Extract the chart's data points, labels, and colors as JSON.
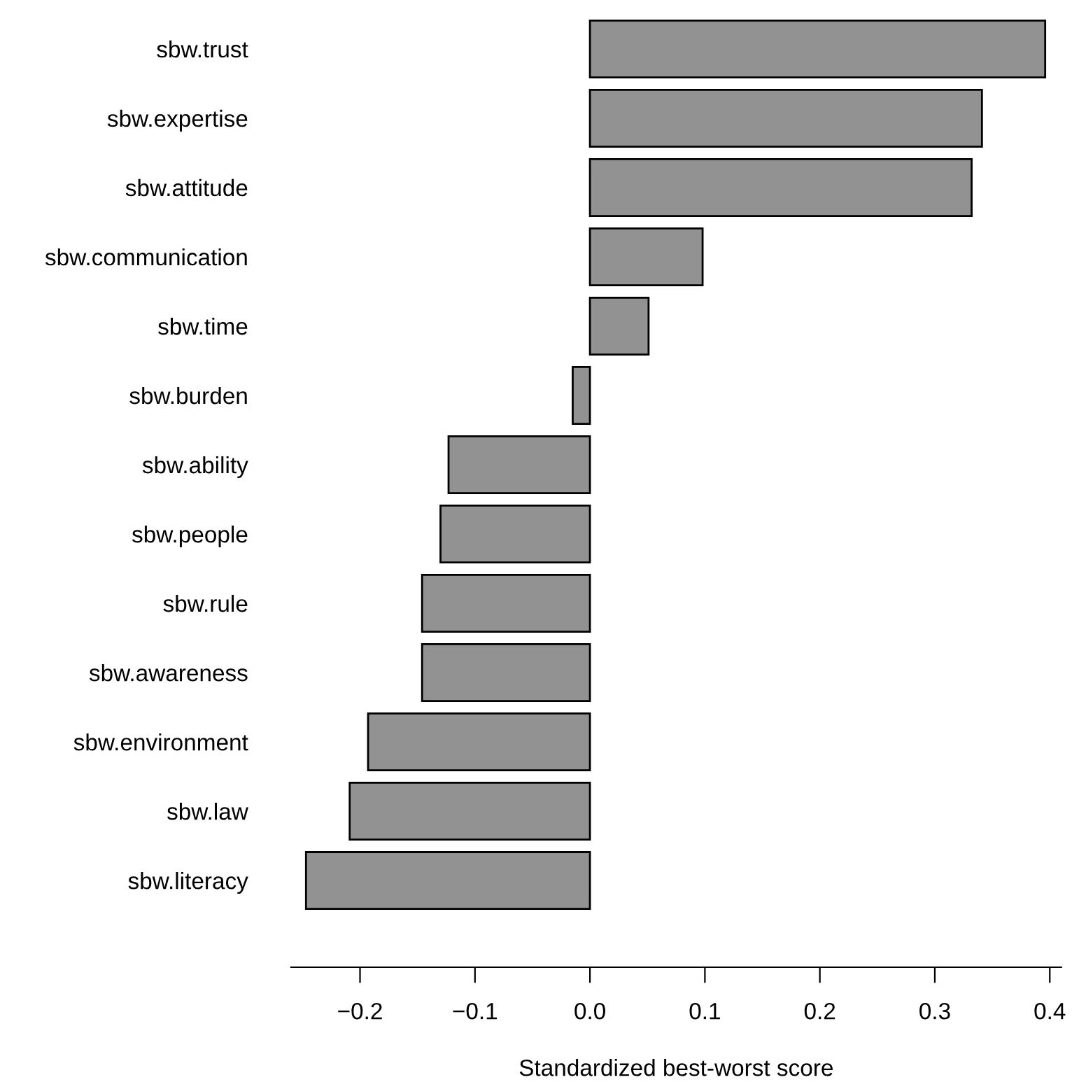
{
  "chart_data": {
    "type": "bar",
    "orientation": "horizontal",
    "xlabel": "Standardized best-worst score",
    "categories": [
      "sbw.trust",
      "sbw.expertise",
      "sbw.attitude",
      "sbw.communication",
      "sbw.time",
      "sbw.burden",
      "sbw.ability",
      "sbw.people",
      "sbw.rule",
      "sbw.awareness",
      "sbw.environment",
      "sbw.law",
      "sbw.literacy"
    ],
    "values": [
      0.396,
      0.341,
      0.332,
      0.098,
      0.051,
      -0.015,
      -0.123,
      -0.13,
      -0.146,
      -0.146,
      -0.193,
      -0.209,
      -0.247
    ],
    "color": "#929292",
    "xlim": [
      -0.26,
      0.41
    ],
    "xticks": [
      {
        "value": -0.2,
        "label": "−0.2"
      },
      {
        "value": -0.1,
        "label": "−0.1"
      },
      "0.0",
      0.1,
      0.2,
      0.3,
      0.4
    ],
    "grid": false
  }
}
